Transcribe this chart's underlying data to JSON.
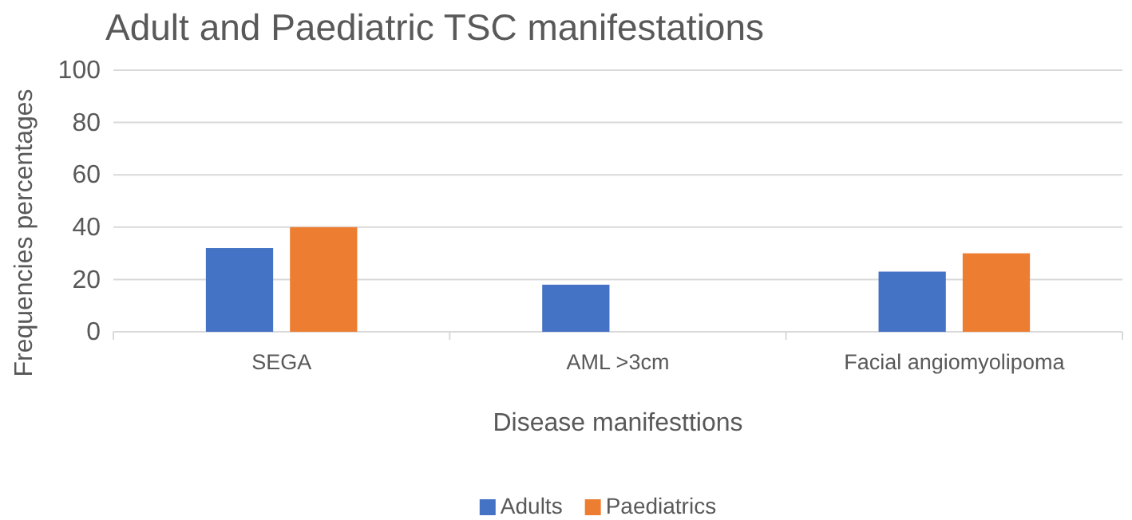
{
  "chart_data": {
    "type": "bar",
    "title": "Adult and Paediatric TSC manifestations",
    "xlabel": "Disease manifesttions",
    "ylabel": "Frequencies percentages",
    "categories": [
      "SEGA",
      "AML >3cm",
      "Facial angiomyolipoma"
    ],
    "series": [
      {
        "name": "Adults",
        "color": "#4472c4",
        "values": [
          32,
          18,
          23
        ]
      },
      {
        "name": "Paediatrics",
        "color": "#ed7d31",
        "values": [
          40,
          0,
          30
        ]
      }
    ],
    "ylim": [
      0,
      100
    ],
    "yticks": [
      0,
      20,
      40,
      60,
      80,
      100
    ],
    "grid": "y",
    "legend": "bottom"
  }
}
